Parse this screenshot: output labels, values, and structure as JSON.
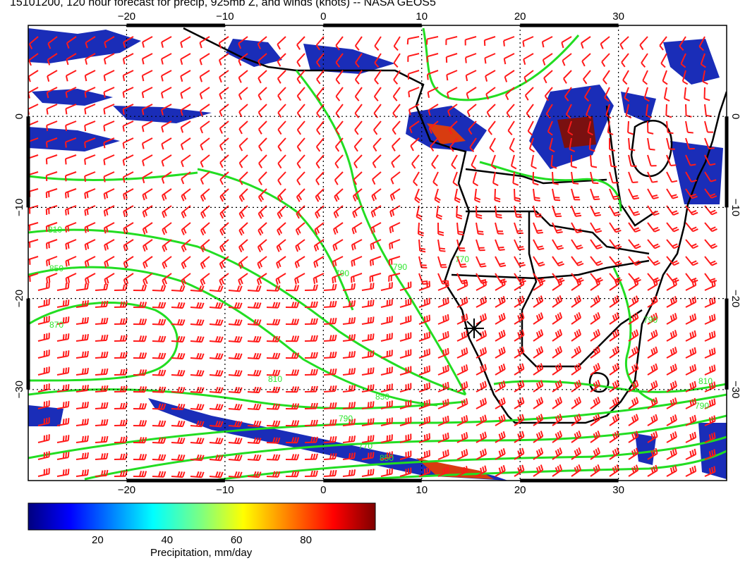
{
  "title": "15101200, 120 hour forecast for precip, 925mb Z, and winds (knots) -- NASA GEOS5",
  "map": {
    "lon_range": [
      -30,
      41
    ],
    "lat_range": [
      -40,
      10
    ],
    "lon_ticks": [
      {
        "value": -20,
        "label": "−20"
      },
      {
        "value": -10,
        "label": "−10"
      },
      {
        "value": 0,
        "label": "0"
      },
      {
        "value": 10,
        "label": "10"
      },
      {
        "value": 20,
        "label": "20"
      },
      {
        "value": 30,
        "label": "30"
      }
    ],
    "lat_ticks": [
      {
        "value": 0,
        "label": "0"
      },
      {
        "value": -10,
        "label": "−10"
      },
      {
        "value": -20,
        "label": "−20"
      },
      {
        "value": -30,
        "label": "−30"
      }
    ],
    "contour_labels": [
      "810",
      "850",
      "870",
      "790",
      "850",
      "810",
      "790",
      "770",
      "850",
      "790",
      "770",
      "790",
      "810",
      "790"
    ],
    "colors": {
      "contour": "#22dd22",
      "wind": "#ff1a1a",
      "coast": "#000000",
      "grid": "#000000"
    }
  },
  "colorbar": {
    "title": "Precipitation, mm/day",
    "ticks": [
      "20",
      "40",
      "60",
      "80"
    ],
    "tick_values": [
      20,
      40,
      60,
      80
    ],
    "range": [
      0,
      100
    ],
    "colormap": "jet"
  }
}
